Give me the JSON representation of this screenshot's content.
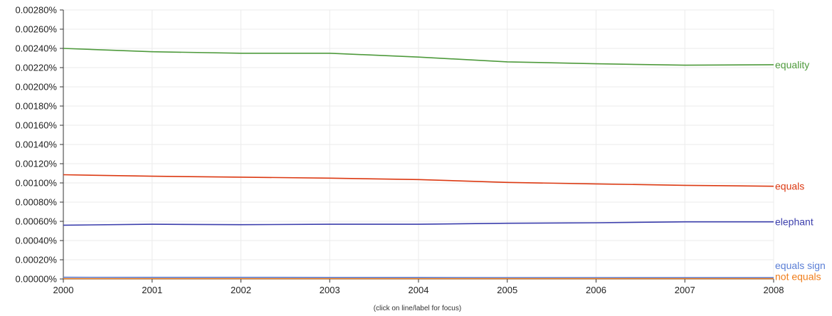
{
  "chart_data": {
    "type": "line",
    "x": [
      2000,
      2001,
      2002,
      2003,
      2004,
      2005,
      2006,
      2007,
      2008
    ],
    "xlim": [
      2000,
      2008
    ],
    "ylim": [
      0,
      0.0028
    ],
    "y_ticks": [
      "0.00000%",
      "0.00020%",
      "0.00040%",
      "0.00060%",
      "0.00080%",
      "0.00100%",
      "0.00120%",
      "0.00140%",
      "0.00160%",
      "0.00180%",
      "0.00200%",
      "0.00220%",
      "0.00240%",
      "0.00260%",
      "0.00280%"
    ],
    "x_ticks": [
      "2000",
      "2001",
      "2002",
      "2003",
      "2004",
      "2005",
      "2006",
      "2007",
      "2008"
    ],
    "grid": true,
    "legend": "labels at right end of each line",
    "series": [
      {
        "name": "equality",
        "color": "#4e9a3c",
        "values": [
          0.0024,
          0.002365,
          0.00235,
          0.00235,
          0.00231,
          0.00226,
          0.00224,
          0.002225,
          0.00223
        ]
      },
      {
        "name": "equals",
        "color": "#dc3912",
        "values": [
          0.001085,
          0.00107,
          0.00106,
          0.00105,
          0.001035,
          0.001005,
          0.00099,
          0.000975,
          0.000965
        ]
      },
      {
        "name": "elephant",
        "color": "#3b3eac",
        "values": [
          0.00056,
          0.00057,
          0.000565,
          0.00057,
          0.00057,
          0.00058,
          0.000585,
          0.000595,
          0.000595
        ]
      },
      {
        "name": "equals sign",
        "color": "#5b7fd6",
        "values": [
          1.8e-05,
          1.7e-05,
          1.7e-05,
          1.6e-05,
          1.6e-05,
          1.5e-05,
          1.5e-05,
          1.4e-05,
          1.4e-05
        ]
      },
      {
        "name": "not equals",
        "color": "#f07d1a",
        "values": [
          4e-06,
          4e-06,
          4e-06,
          4e-06,
          4e-06,
          4e-06,
          4e-06,
          4e-06,
          4e-06
        ]
      }
    ]
  },
  "footer": {
    "hint": "(click on line/label for focus)"
  }
}
